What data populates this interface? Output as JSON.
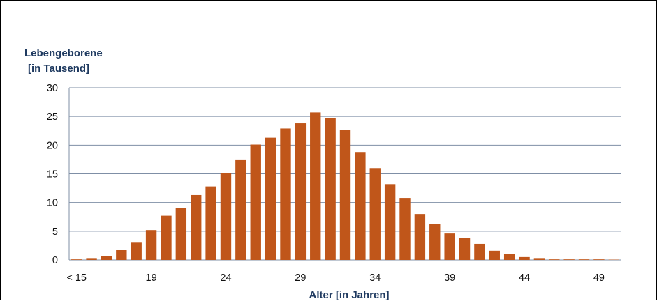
{
  "chart_data": {
    "type": "bar",
    "title": "",
    "ylabel_line1": "Lebengeborene",
    "ylabel_line2": "[in Tausend]",
    "xlabel": "Alter [in Jahren]",
    "ylim": [
      0,
      30
    ],
    "y_ticks": [
      0,
      5,
      10,
      15,
      20,
      25,
      30
    ],
    "x_tick_labels": [
      {
        "category": "< 15",
        "label": "< 15"
      },
      {
        "category": "19",
        "label": "19"
      },
      {
        "category": "24",
        "label": "24"
      },
      {
        "category": "29",
        "label": "29"
      },
      {
        "category": "34",
        "label": "34"
      },
      {
        "category": "39",
        "label": "39"
      },
      {
        "category": "44",
        "label": "44"
      },
      {
        "category": "49",
        "label": "49"
      }
    ],
    "grid": true,
    "bar_color": "#c0561a",
    "grid_color": "#7f8fa6",
    "categories": [
      "< 15",
      "15",
      "16",
      "17",
      "18",
      "19",
      "20",
      "21",
      "22",
      "23",
      "24",
      "25",
      "26",
      "27",
      "28",
      "29",
      "30",
      "31",
      "32",
      "33",
      "34",
      "35",
      "36",
      "37",
      "38",
      "39",
      "40",
      "41",
      "42",
      "43",
      "44",
      "45",
      "46",
      "47",
      "48",
      "49",
      "50"
    ],
    "values": [
      0.1,
      0.2,
      0.7,
      1.7,
      3.0,
      5.2,
      7.7,
      9.1,
      11.3,
      12.8,
      15.1,
      17.5,
      20.1,
      21.3,
      22.9,
      23.8,
      25.7,
      24.7,
      22.7,
      18.8,
      16.0,
      13.2,
      10.8,
      8.0,
      6.3,
      4.6,
      3.8,
      2.8,
      1.6,
      1.0,
      0.5,
      0.2,
      0.1,
      0.1,
      0.1,
      0.1,
      0.05
    ]
  }
}
